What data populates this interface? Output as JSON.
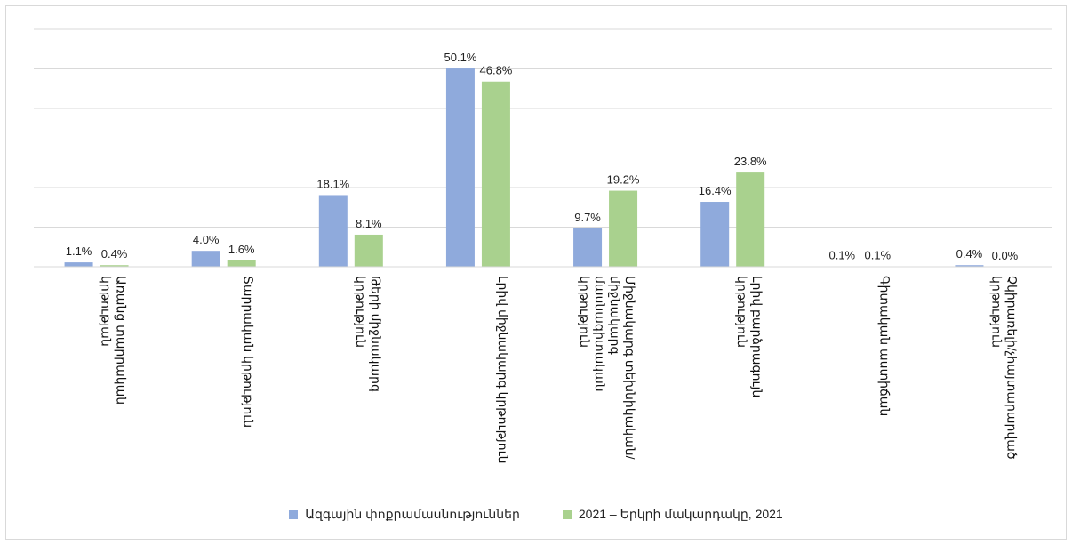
{
  "chart_data": {
    "type": "bar",
    "categories": [
      "Առանց տարրական կրթության",
      "Տարրական կրթություն",
      "Թերի միջնակարգ կրթություն",
      "Լրիվ միջնակարգ կրթություն",
      "Միջնակարգ տեխնիկական/միջնակարգ մասնագիտական կրթություն",
      "Լրիվ բարձրագույն կրթություն",
      "Գիտական աստիճան",
      "Չկիրառելի/չհայտարարված կրթություն"
    ],
    "series": [
      {
        "name": "Ազգային փոքրամասնություններ",
        "color": "#8faadc",
        "values": [
          1.1,
          4.0,
          18.1,
          50.1,
          9.7,
          16.4,
          0.1,
          0.4
        ],
        "value_labels": [
          "1.1%",
          "4.0%",
          "18.1%",
          "50.1%",
          "9.7%",
          "16.4%",
          "0.1%",
          "0.4%"
        ]
      },
      {
        "name": "2021 – Երկրի մակարդակը, 2021",
        "color": "#a9d18e",
        "values": [
          0.4,
          1.6,
          8.1,
          46.8,
          19.2,
          23.8,
          0.1,
          0.0
        ],
        "value_labels": [
          "0.4%",
          "1.6%",
          "8.1%",
          "46.8%",
          "19.2%",
          "23.8%",
          "0.1%",
          "0.0%"
        ]
      }
    ],
    "ylim": [
      0,
      60
    ],
    "yticks": [
      0,
      10,
      20,
      30,
      40,
      50,
      60
    ],
    "grid": true,
    "legend": "bottom"
  }
}
